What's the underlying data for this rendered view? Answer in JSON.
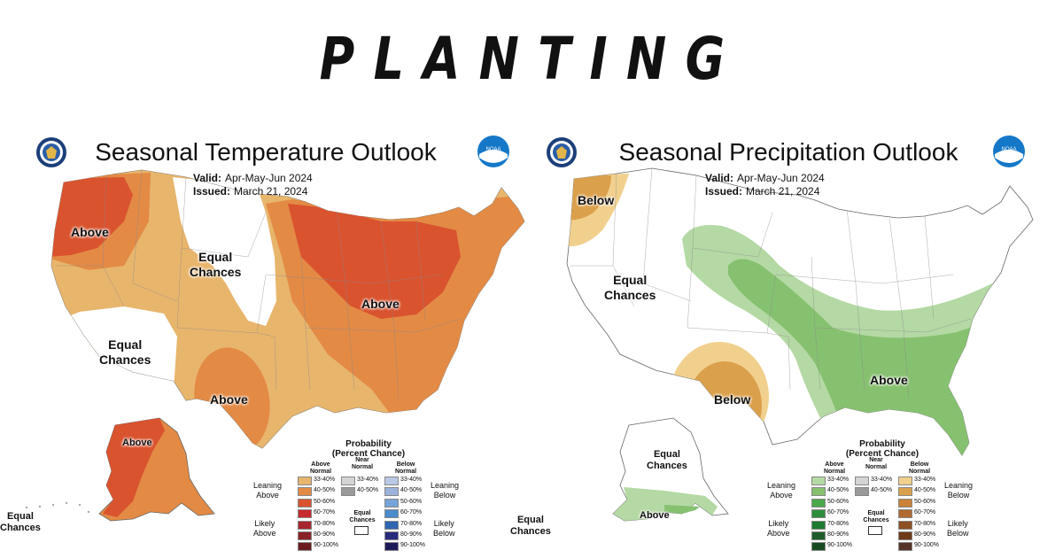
{
  "headline": "PLANTING",
  "colors": {
    "above": [
      "#e8b56c",
      "#e38a45",
      "#d9532f",
      "#c82b2f",
      "#a8252d",
      "#8a2127",
      "#6b1b1f"
    ],
    "near": [
      "#d4d4d4",
      "#9a9a9a"
    ],
    "below_temp": [
      "#b9c8e6",
      "#9bb2db",
      "#76a4d8",
      "#4a8bcc",
      "#2e66b1",
      "#2a2a7d",
      "#1d1a5a"
    ],
    "above_precip": [
      "#b4d9a4",
      "#86c16f",
      "#4aa84a",
      "#2f8e3d",
      "#1f7a32",
      "#1e5c2b",
      "#184a22"
    ],
    "below_precip": [
      "#f1d08e",
      "#dba04b",
      "#cc8139",
      "#b06a32",
      "#8e4f22",
      "#6e3a1a",
      "#553229"
    ]
  },
  "temperature": {
    "title": "Seasonal Temperature Outlook",
    "valid_label": "Valid:",
    "valid_value": "Apr-May-Jun 2024",
    "issued_label": "Issued:",
    "issued_value": "March 21, 2024",
    "seal_icon": "commerce-seal-icon",
    "noaa_icon": "noaa-logo-icon",
    "noaa_text": "NOAA",
    "regions": {
      "northwest_above": "Above",
      "northern_rockies_equal": "Equal\nChances",
      "southwest_equal": "Equal\nChances",
      "great_lakes_above": "Above",
      "texas_above": "Above",
      "alaska_above": "Above",
      "alaska_equal": "Equal\nChances"
    }
  },
  "precipitation": {
    "title": "Seasonal Precipitation Outlook",
    "valid_label": "Valid:",
    "valid_value": "Apr-May-Jun 2024",
    "issued_label": "Issued:",
    "issued_value": "March 21, 2024",
    "seal_icon": "commerce-seal-icon",
    "noaa_icon": "noaa-logo-icon",
    "noaa_text": "NOAA",
    "regions": {
      "northwest_below": "Below",
      "west_equal": "Equal\nChances",
      "southwest_below": "Below",
      "southeast_above": "Above",
      "alaska_above": "Above",
      "alaska_equal": "Equal\nChances",
      "corner_equal": "Equal\nChances"
    }
  },
  "legend": {
    "title": "Probability\n(Percent Chance)",
    "col_above": "Above\nNormal",
    "col_near": "Near\nNormal",
    "col_below": "Below\nNormal",
    "leaning_above": "Leaning\nAbove",
    "likely_above": "Likely\nAbove",
    "leaning_below": "Leaning\nBelow",
    "likely_below": "Likely\nBelow",
    "equal_chances": "Equal\nChances",
    "levels": [
      "33-40%",
      "40-50%",
      "50-60%",
      "60-70%",
      "70-80%",
      "80-90%",
      "90-100%"
    ],
    "near_levels": [
      "33-40%",
      "40-50%"
    ]
  },
  "temp_corner_label": "Equal\nChances"
}
